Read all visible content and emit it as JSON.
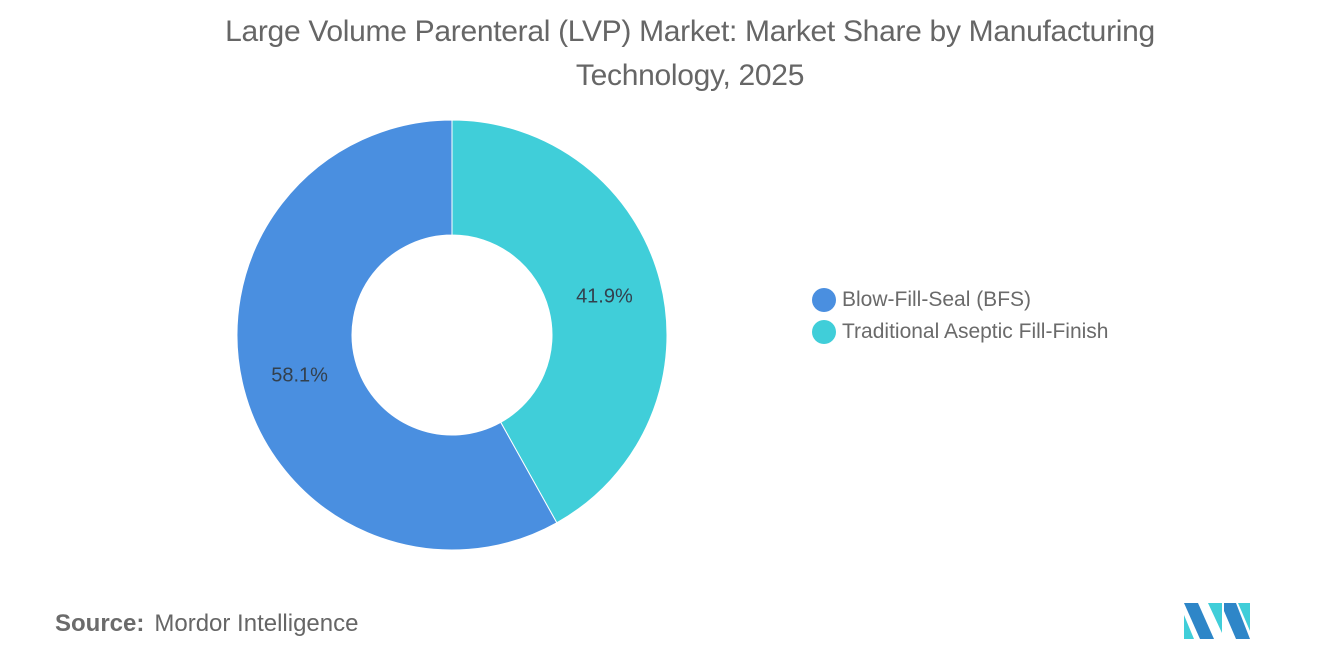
{
  "title_lines": [
    "Large Volume Parenteral (LVP) Market: Market Share by Manufacturing",
    "Technology, 2025"
  ],
  "legend": [
    {
      "label": "Blow-Fill-Seal (BFS)",
      "color": "#4A8FE0"
    },
    {
      "label": "Traditional Aseptic Fill-Finish",
      "color": "#40CED9"
    }
  ],
  "source": {
    "key": "Source:",
    "value": "Mordor Intelligence"
  },
  "chart_data": {
    "type": "pie",
    "variant": "donut",
    "title": "Large Volume Parenteral (LVP) Market: Market Share by Manufacturing Technology, 2025",
    "categories": [
      "Blow-Fill-Seal (BFS)",
      "Traditional Aseptic Fill-Finish"
    ],
    "values": [
      58.1,
      41.9
    ],
    "labels": [
      "58.1%",
      "41.9%"
    ],
    "colors": [
      "#4A8FE0",
      "#40CED9"
    ],
    "unit": "%",
    "legend_position": "right",
    "start_angle": "12 o'clock, clockwise (Traditional Aseptic first)"
  }
}
